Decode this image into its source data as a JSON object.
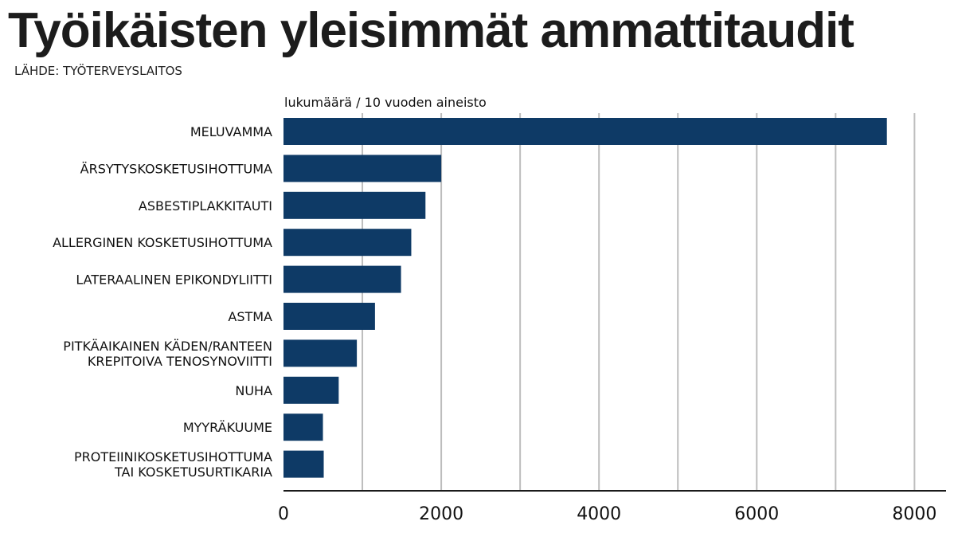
{
  "title": "Työikäisten yleisimmät ammattitaudit",
  "source": "LÄHDE: TYÖTERVEYSLAITOS",
  "chart_data": {
    "type": "bar",
    "orientation": "horizontal",
    "unit_label": "lukumäärä / 10 vuoden aineisto",
    "categories": [
      [
        "MELUVAMMA"
      ],
      [
        "ÄRSYTYSKOSKETUSIHOTTUMA"
      ],
      [
        "ASBESTIPLAKKITAUTI"
      ],
      [
        "ALLERGINEN KOSKETUSIHOTTUMA"
      ],
      [
        "LATERAALINEN EPIKONDYLIITTI"
      ],
      [
        "ASTMA"
      ],
      [
        "PITKÄAIKAINEN KÄDEN/RANTEEN",
        "KREPITOIVA TENOSYNOVIITTI"
      ],
      [
        "NUHA"
      ],
      [
        "MYYRÄKUUME"
      ],
      [
        "PROTEIINIKOSKETUSIHOTTUMA",
        "TAI KOSKETUSURTIKARIA"
      ]
    ],
    "values": [
      7650,
      2000,
      1800,
      1620,
      1490,
      1160,
      930,
      700,
      500,
      510
    ],
    "xlim": [
      0,
      8400
    ],
    "xticks": [
      0,
      2000,
      4000,
      6000,
      8000
    ],
    "grid": true,
    "bar_color": "#0e3a66"
  }
}
